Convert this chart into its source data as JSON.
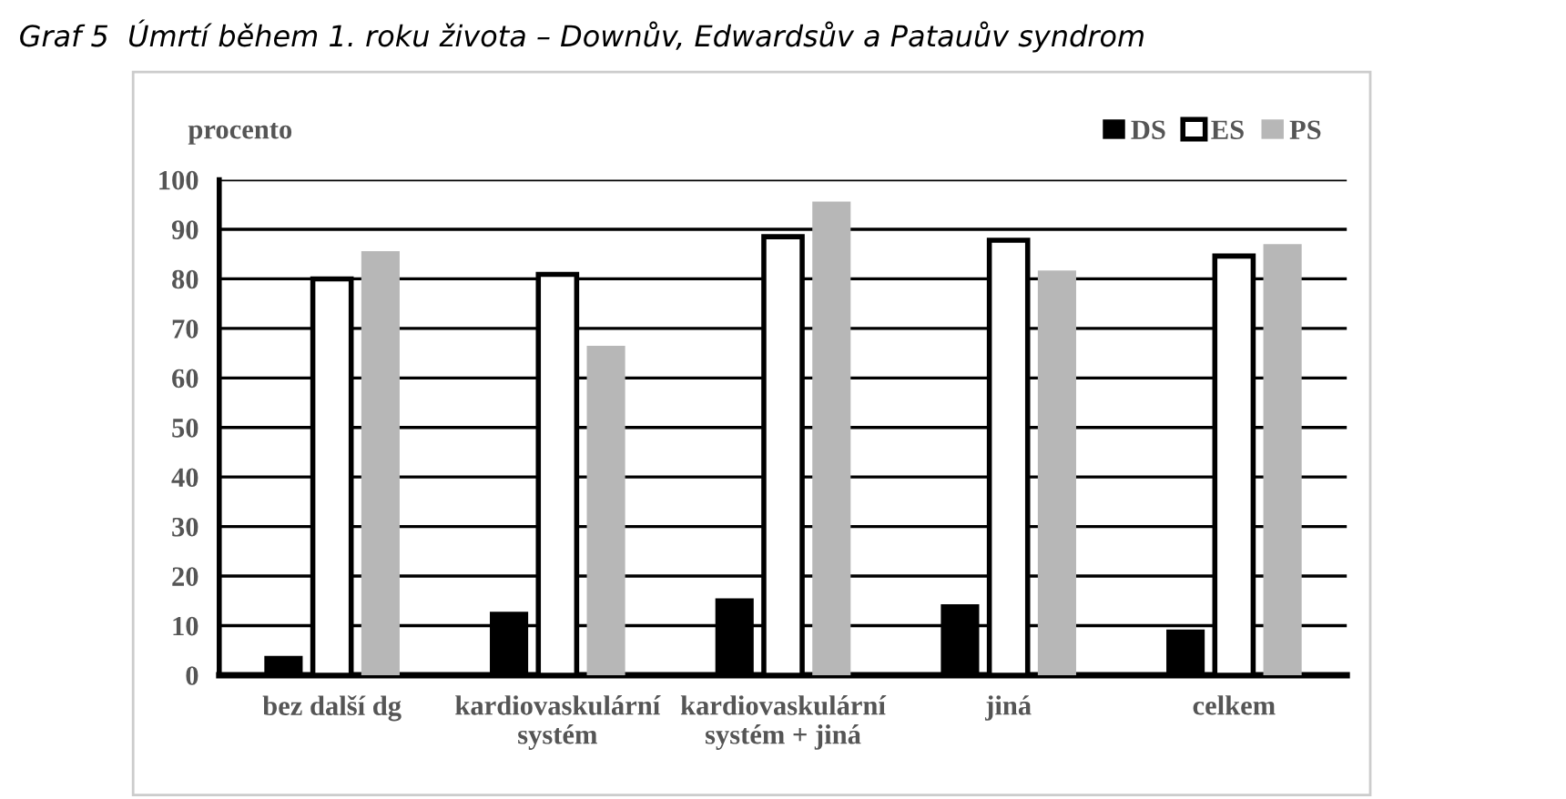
{
  "chart_data": {
    "type": "bar",
    "title": "Graf 5  Úmrtí během 1. roku života – Downův, Edwardsův a Patauův syndrom",
    "ylabel": "procento",
    "categories": [
      "bez další dg",
      "kardiovaskulární\nsystém",
      "kardiovaskulární\nsystém + jiná",
      "jiná",
      "celkem"
    ],
    "series": [
      {
        "name": "DS",
        "color": "#000000",
        "values": [
          3.9,
          12.8,
          15.5,
          14.3,
          9.2
        ]
      },
      {
        "name": "ES",
        "color": "#ffffff",
        "values": [
          80.0,
          80.9,
          88.5,
          87.8,
          84.6
        ]
      },
      {
        "name": "PS",
        "color": "#b7b7b7",
        "values": [
          85.6,
          66.5,
          95.6,
          81.7,
          87.0
        ]
      }
    ],
    "ylim": [
      0,
      100
    ],
    "yticks": [
      0,
      10,
      20,
      30,
      40,
      50,
      60,
      70,
      80,
      90,
      100
    ],
    "grid": "y",
    "legend": "top right"
  }
}
